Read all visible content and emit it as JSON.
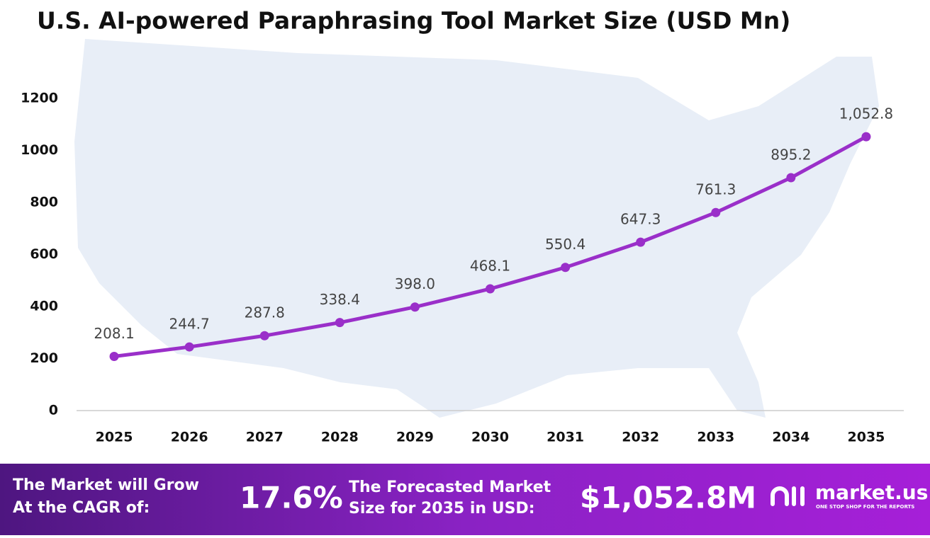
{
  "chart_data": {
    "type": "line",
    "title": "U.S. AI-powered Paraphrasing Tool Market Size (USD Mn)",
    "categories": [
      "2025",
      "2026",
      "2027",
      "2028",
      "2029",
      "2030",
      "2031",
      "2032",
      "2033",
      "2034",
      "2035"
    ],
    "values": [
      208.1,
      244.7,
      287.8,
      338.4,
      398.0,
      468.1,
      550.4,
      647.3,
      761.3,
      895.2,
      1052.8
    ],
    "value_labels": [
      "208.1",
      "244.7",
      "287.8",
      "338.4",
      "398.0",
      "468.1",
      "550.4",
      "647.3",
      "761.3",
      "895.2",
      "1,052.8"
    ],
    "color": "#9a2fc9",
    "ylim": [
      0,
      1200
    ],
    "yticks": [
      0,
      200,
      400,
      600,
      800,
      1000,
      1200
    ],
    "grid": false
  },
  "footer": {
    "cagr_text": [
      "The Market will Grow",
      "At the CAGR of:"
    ],
    "cagr_value": "17.6%",
    "forecast_text": [
      "The Forecasted Market",
      "Size for 2035 in USD:"
    ],
    "forecast_value": "$1,052.8M",
    "brand": "market.us",
    "tagline": "ONE STOP SHOP FOR THE REPORTS"
  }
}
